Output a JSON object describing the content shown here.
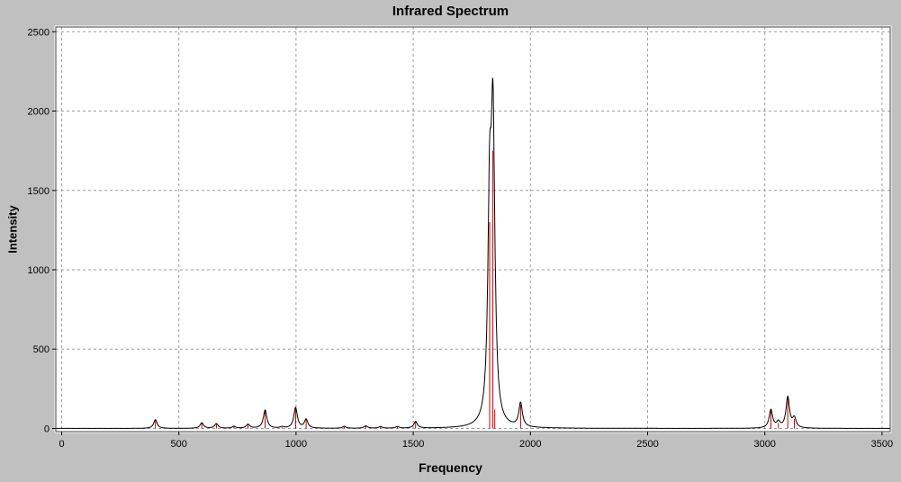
{
  "chart_data": {
    "type": "line",
    "title": "Infrared Spectrum",
    "xlabel": "Frequency",
    "ylabel": "Intensity",
    "xlim": [
      -25,
      3535
    ],
    "ylim": [
      -20,
      2530
    ],
    "x_ticks": [
      0,
      500,
      1000,
      1500,
      2000,
      2500,
      3000,
      3500
    ],
    "y_ticks": [
      0,
      500,
      1000,
      1500,
      2000,
      2500
    ],
    "grid": true,
    "legend": false,
    "lorentzian_hwhm": 9,
    "peaks": [
      {
        "frequency": 400,
        "intensity": 55
      },
      {
        "frequency": 598,
        "intensity": 35
      },
      {
        "frequency": 660,
        "intensity": 30
      },
      {
        "frequency": 735,
        "intensity": 12
      },
      {
        "frequency": 795,
        "intensity": 25
      },
      {
        "frequency": 868,
        "intensity": 115
      },
      {
        "frequency": 940,
        "intensity": 8
      },
      {
        "frequency": 998,
        "intensity": 130
      },
      {
        "frequency": 1043,
        "intensity": 55
      },
      {
        "frequency": 1205,
        "intensity": 12
      },
      {
        "frequency": 1298,
        "intensity": 15
      },
      {
        "frequency": 1360,
        "intensity": 10
      },
      {
        "frequency": 1432,
        "intensity": 10
      },
      {
        "frequency": 1510,
        "intensity": 42
      },
      {
        "frequency": 1826,
        "intensity": 1300
      },
      {
        "frequency": 1840,
        "intensity": 1750
      },
      {
        "frequency": 1848,
        "intensity": 120
      },
      {
        "frequency": 1958,
        "intensity": 150
      },
      {
        "frequency": 3026,
        "intensity": 115
      },
      {
        "frequency": 3058,
        "intensity": 35
      },
      {
        "frequency": 3098,
        "intensity": 195
      },
      {
        "frequency": 3126,
        "intensity": 60
      }
    ],
    "series_notes": {
      "stems": "discrete vibrational mode intensities (red vertical lines)",
      "envelope": "black curve = Lorentzian-broadened sum of stems"
    },
    "colors": {
      "outer_background": "#c0c0c0",
      "plot_background": "#ffffff",
      "grid": "#9e9e9e",
      "border": "#404040",
      "stick": "#cc0000",
      "envelope": "#000000",
      "text": "#000000"
    }
  }
}
